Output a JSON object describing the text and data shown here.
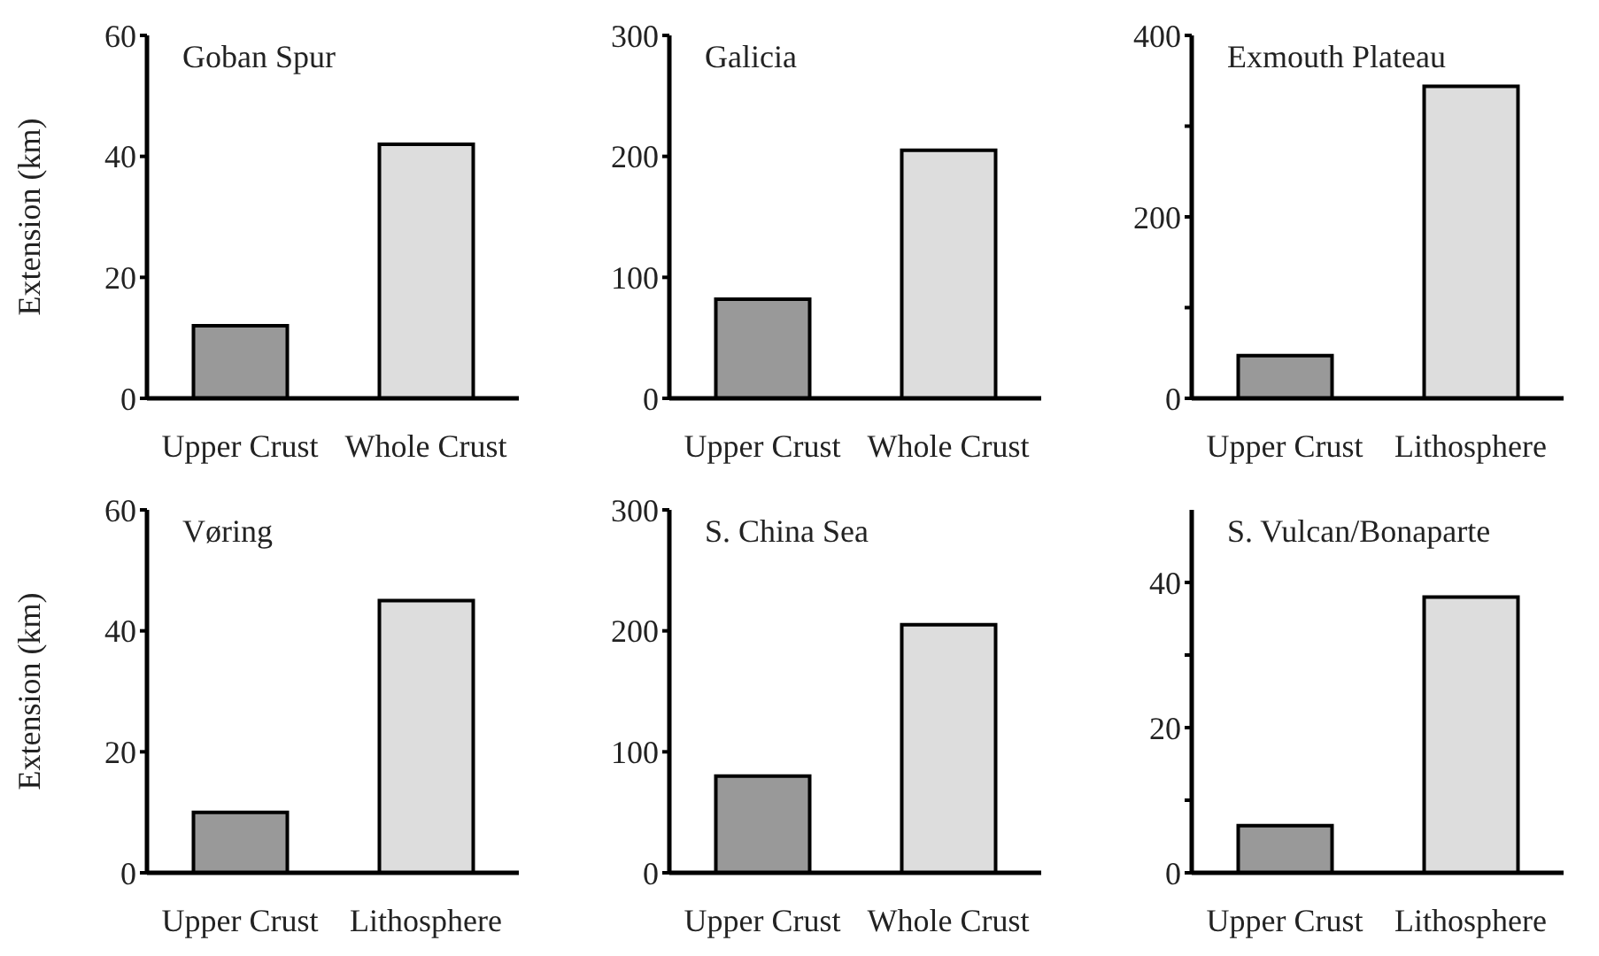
{
  "chart_data": [
    {
      "type": "bar",
      "title": "Goban Spur",
      "ylabel": "Extension (km)",
      "categories": [
        "Upper Crust",
        "Whole Crust"
      ],
      "values": [
        12,
        42
      ],
      "colors": [
        "#999999",
        "#dddddd"
      ],
      "ylim": [
        0,
        60
      ],
      "yticks": [
        0,
        20,
        40,
        60
      ]
    },
    {
      "type": "bar",
      "title": "Galicia",
      "categories": [
        "Upper Crust",
        "Whole Crust"
      ],
      "values": [
        82,
        205
      ],
      "colors": [
        "#999999",
        "#dddddd"
      ],
      "ylim": [
        0,
        300
      ],
      "yticks": [
        0,
        100,
        200,
        300
      ]
    },
    {
      "type": "bar",
      "title": "Exmouth Plateau",
      "categories": [
        "Upper Crust",
        "Lithosphere"
      ],
      "values": [
        47,
        344
      ],
      "colors": [
        "#999999",
        "#dddddd"
      ],
      "ylim": [
        0,
        400
      ],
      "yticks": [
        0,
        {
          "value": 100,
          "label": null
        },
        200,
        {
          "value": 300,
          "label": null
        },
        400
      ]
    },
    {
      "type": "bar",
      "title": "Vøring",
      "ylabel": "Extension (km)",
      "categories": [
        "Upper Crust",
        "Lithosphere"
      ],
      "values": [
        10,
        45
      ],
      "colors": [
        "#999999",
        "#dddddd"
      ],
      "ylim": [
        0,
        60
      ],
      "yticks": [
        0,
        20,
        40,
        60
      ]
    },
    {
      "type": "bar",
      "title": "S. China Sea",
      "categories": [
        "Upper Crust",
        "Whole Crust"
      ],
      "values": [
        80,
        205
      ],
      "colors": [
        "#999999",
        "#dddddd"
      ],
      "ylim": [
        0,
        300
      ],
      "yticks": [
        0,
        100,
        200,
        300
      ]
    },
    {
      "type": "bar",
      "title": "S. Vulcan/Bonaparte",
      "categories": [
        "Upper Crust",
        "Lithosphere"
      ],
      "values": [
        6.5,
        38
      ],
      "colors": [
        "#999999",
        "#dddddd"
      ],
      "ylim": [
        0,
        50
      ],
      "yticks": [
        0,
        {
          "value": 10,
          "label": null
        },
        20,
        {
          "value": 30,
          "label": null
        },
        40
      ]
    }
  ]
}
